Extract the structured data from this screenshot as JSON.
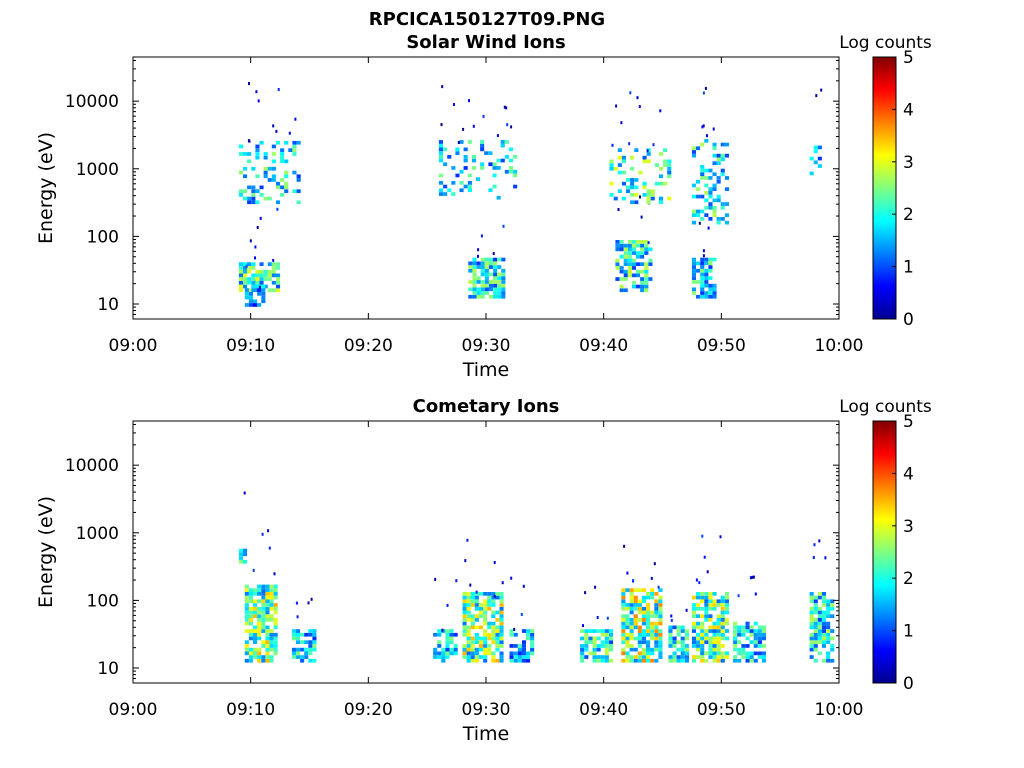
{
  "figure_title": "RPCICA150127T09.PNG",
  "colormap": [
    "#00008f",
    "#0000ff",
    "#0080ff",
    "#00ffff",
    "#80ff80",
    "#ffff00",
    "#ff8000",
    "#ff0000",
    "#800000"
  ],
  "chart_data": [
    {
      "type": "heatmap",
      "title": "Solar Wind Ions",
      "xlabel": "Time",
      "ylabel": "Energy (eV)",
      "xlim": [
        "09:00",
        "10:00"
      ],
      "x_ticks": [
        "09:00",
        "09:10",
        "09:20",
        "09:30",
        "09:40",
        "09:50",
        "10:00"
      ],
      "y_scale": "log",
      "ylim": [
        6,
        45000
      ],
      "y_ticks": [
        10,
        100,
        1000,
        10000
      ],
      "y_tick_labels": [
        "10",
        "100",
        "1000",
        "10000"
      ],
      "colorbar": {
        "label": "Log counts",
        "range": [
          0,
          5
        ],
        "ticks": [
          "0",
          "1",
          "2",
          "3",
          "4",
          "5"
        ]
      },
      "bursts": [
        {
          "t_min": 9.0,
          "t_max": 12.2,
          "e_min": 15,
          "e_max": 40,
          "peak": 2.8,
          "density": 0.75
        },
        {
          "t_min": 9.5,
          "t_max": 11.0,
          "e_min": 8,
          "e_max": 18,
          "peak": 1.8,
          "density": 0.6
        },
        {
          "t_min": 9.0,
          "t_max": 14.0,
          "e_min": 300,
          "e_max": 2500,
          "peak": 2.5,
          "density": 0.28
        },
        {
          "t_min": 28.5,
          "t_max": 31.5,
          "e_min": 12,
          "e_max": 45,
          "peak": 2.5,
          "density": 0.75
        },
        {
          "t_min": 26.0,
          "t_max": 32.5,
          "e_min": 350,
          "e_max": 2500,
          "peak": 2.3,
          "density": 0.25
        },
        {
          "t_min": 41.0,
          "t_max": 44.0,
          "e_min": 15,
          "e_max": 80,
          "peak": 2.6,
          "density": 0.65
        },
        {
          "t_min": 40.5,
          "t_max": 45.5,
          "e_min": 300,
          "e_max": 1800,
          "peak": 2.8,
          "density": 0.3
        },
        {
          "t_min": 47.5,
          "t_max": 49.5,
          "e_min": 12,
          "e_max": 45,
          "peak": 2.4,
          "density": 0.65
        },
        {
          "t_min": 47.5,
          "t_max": 50.5,
          "e_min": 150,
          "e_max": 2500,
          "peak": 2.6,
          "density": 0.35
        },
        {
          "t_min": 57.5,
          "t_max": 58.5,
          "e_min": 800,
          "e_max": 2200,
          "peak": 2.0,
          "density": 0.45
        }
      ]
    },
    {
      "type": "heatmap",
      "title": "Cometary Ions",
      "xlabel": "Time",
      "ylabel": "Energy (eV)",
      "xlim": [
        "09:00",
        "10:00"
      ],
      "x_ticks": [
        "09:00",
        "09:10",
        "09:20",
        "09:30",
        "09:40",
        "09:50",
        "10:00"
      ],
      "y_scale": "log",
      "ylim": [
        6,
        45000
      ],
      "y_ticks": [
        10,
        100,
        1000,
        10000
      ],
      "y_tick_labels": [
        "10",
        "100",
        "1000",
        "10000"
      ],
      "colorbar": {
        "label": "Log counts",
        "range": [
          0,
          5
        ],
        "ticks": [
          "0",
          "1",
          "2",
          "3",
          "4",
          "5"
        ]
      },
      "bursts": [
        {
          "t_min": 9.5,
          "t_max": 12.0,
          "e_min": 12,
          "e_max": 160,
          "peak": 3.2,
          "density": 0.8
        },
        {
          "t_min": 9.0,
          "t_max": 9.5,
          "e_min": 350,
          "e_max": 550,
          "peak": 2.5,
          "density": 0.7
        },
        {
          "t_min": 13.5,
          "t_max": 15.5,
          "e_min": 12,
          "e_max": 35,
          "peak": 2.4,
          "density": 0.7
        },
        {
          "t_min": 25.5,
          "t_max": 27.5,
          "e_min": 12,
          "e_max": 35,
          "peak": 2.3,
          "density": 0.65
        },
        {
          "t_min": 28.0,
          "t_max": 31.5,
          "e_min": 12,
          "e_max": 120,
          "peak": 3.2,
          "density": 0.8
        },
        {
          "t_min": 32.0,
          "t_max": 34.0,
          "e_min": 12,
          "e_max": 35,
          "peak": 2.2,
          "density": 0.7
        },
        {
          "t_min": 38.0,
          "t_max": 40.5,
          "e_min": 12,
          "e_max": 35,
          "peak": 2.6,
          "density": 0.7
        },
        {
          "t_min": 41.5,
          "t_max": 45.0,
          "e_min": 12,
          "e_max": 150,
          "peak": 3.4,
          "density": 0.78
        },
        {
          "t_min": 45.5,
          "t_max": 47.0,
          "e_min": 12,
          "e_max": 40,
          "peak": 2.5,
          "density": 0.7
        },
        {
          "t_min": 47.5,
          "t_max": 50.5,
          "e_min": 12,
          "e_max": 130,
          "peak": 3.1,
          "density": 0.75
        },
        {
          "t_min": 51.0,
          "t_max": 53.5,
          "e_min": 12,
          "e_max": 45,
          "peak": 2.4,
          "density": 0.7
        },
        {
          "t_min": 57.5,
          "t_max": 59.5,
          "e_min": 12,
          "e_max": 120,
          "peak": 2.6,
          "density": 0.7
        }
      ]
    }
  ]
}
